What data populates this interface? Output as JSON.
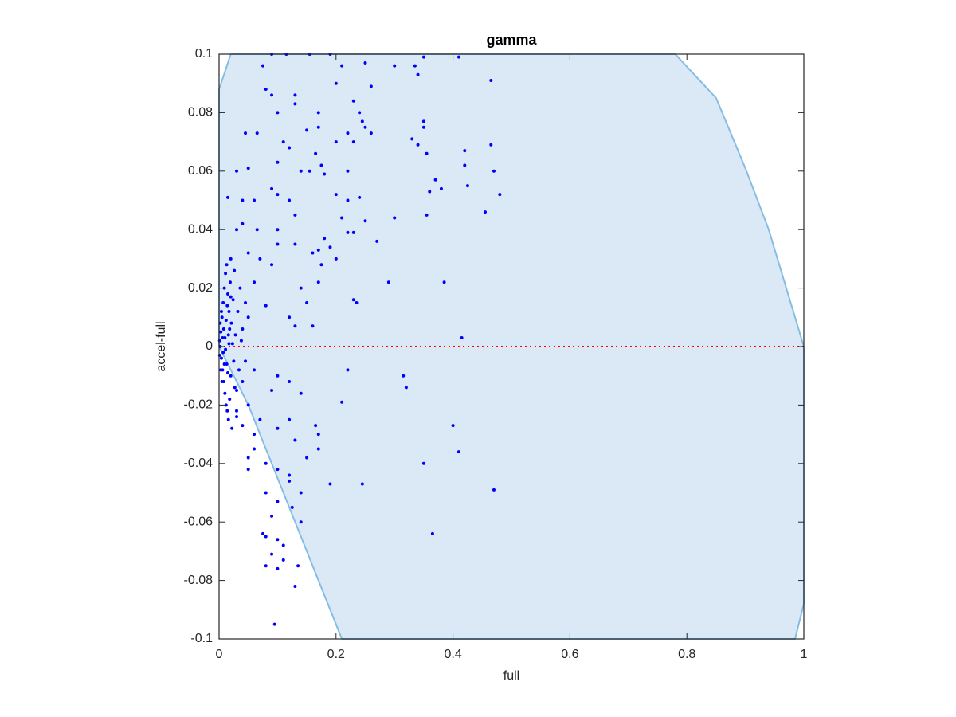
{
  "chart_data": {
    "type": "scatter",
    "title": "gamma",
    "x_label": "full",
    "y_label": "accel-full",
    "xlim": [
      0,
      1
    ],
    "ylim": [
      -0.1,
      0.1
    ],
    "xticks": [
      0,
      0.2,
      0.4,
      0.6,
      0.8,
      1
    ],
    "yticks": [
      -0.1,
      -0.08,
      -0.06,
      -0.04,
      -0.02,
      0,
      0.02,
      0.04,
      0.06,
      0.08,
      0.1
    ],
    "grid": false,
    "box": true,
    "region": {
      "fill": "#dae9f5",
      "edge": "#86bde4",
      "x": [
        0,
        0.02,
        0.78,
        0.85,
        0.9,
        0.94,
        0.97,
        1,
        1,
        0.985,
        0.21,
        0.17,
        0.13,
        0.09,
        0.05,
        0.02,
        0
      ],
      "y": [
        0.088,
        0.1,
        0.1,
        0.085,
        0.061,
        0.04,
        0.02,
        0,
        -0.088,
        -0.1,
        -0.1,
        -0.08,
        -0.06,
        -0.04,
        -0.02,
        -0.008,
        0
      ]
    },
    "reference_line": {
      "y": 0,
      "color": "#ff0000"
    },
    "series": [
      {
        "color": "#0000ff",
        "x": [
          0.09,
          0.115,
          0.075,
          0.155,
          0.19,
          0.21,
          0.25,
          0.3,
          0.335,
          0.35,
          0.41,
          0.34,
          0.465,
          0.26,
          0.08,
          0.09,
          0.13,
          0.13,
          0.2,
          0.23,
          0.1,
          0.065,
          0.045,
          0.17,
          0.15,
          0.17,
          0.24,
          0.245,
          0.25,
          0.22,
          0.26,
          0.35,
          0.35,
          0.33,
          0.34,
          0.11,
          0.12,
          0.165,
          0.2,
          0.23,
          0.355,
          0.42,
          0.465,
          0.42,
          0.03,
          0.05,
          0.1,
          0.14,
          0.155,
          0.175,
          0.18,
          0.22,
          0.36,
          0.37,
          0.38,
          0.425,
          0.47,
          0.48,
          0.455,
          0.015,
          0.04,
          0.06,
          0.09,
          0.1,
          0.12,
          0.2,
          0.22,
          0.24,
          0.355,
          0.3,
          0.25,
          0.21,
          0.13,
          0.1,
          0.065,
          0.03,
          0.04,
          0.18,
          0.22,
          0.23,
          0.27,
          0.1,
          0.13,
          0.16,
          0.17,
          0.19,
          0.2,
          0.05,
          0.07,
          0.02,
          0.09,
          0.175,
          0.29,
          0.385,
          0.17,
          0.14,
          0.06,
          0.23,
          0.235,
          0.15,
          0.08,
          0.415,
          0.12,
          0.13,
          0.16,
          0.04,
          0.05,
          0.06,
          0.1,
          0.22,
          0.315,
          0.32,
          0.12,
          0.09,
          0.21,
          0.14,
          0.05,
          0.07,
          0.12,
          0.04,
          0.165,
          0.17,
          0.4,
          0.06,
          0.1,
          0.13,
          0.06,
          0.17,
          0.41,
          0.05,
          0.08,
          0.15,
          0.35,
          0.1,
          0.12,
          0.19,
          0.245,
          0.47,
          0.12,
          0.14,
          0.08,
          0.1,
          0.125,
          0.09,
          0.14,
          0.365,
          0.075,
          0.08,
          0.1,
          0.11,
          0.09,
          0.11,
          0.08,
          0.135,
          0.1,
          0.13,
          0.095,
          0.05,
          0.03,
          0.03,
          0.002,
          0.003,
          0.004,
          0.005,
          0.006,
          0.007,
          0.008,
          0.009,
          0.01,
          0.011,
          0.012,
          0.013,
          0.014,
          0.015,
          0.016,
          0.017,
          0.018,
          0.019,
          0.02,
          0.021,
          0.022,
          0.024,
          0.025,
          0.026,
          0.027,
          0.028,
          0.03,
          0.032,
          0.034,
          0.036,
          0.002,
          0.003,
          0.004,
          0.005,
          0.006,
          0.007,
          0.008,
          0.009,
          0.01,
          0.012,
          0.014,
          0.016,
          0.018,
          0.02,
          0.023,
          0.038,
          0.04,
          0.045,
          0.045,
          0.001,
          0.001,
          0.011,
          0.013,
          0.015,
          0.017
        ],
        "values": [
          0.1,
          0.1,
          0.096,
          0.1,
          0.1,
          0.096,
          0.097,
          0.096,
          0.096,
          0.099,
          0.099,
          0.093,
          0.091,
          0.089,
          0.088,
          0.086,
          0.086,
          0.083,
          0.09,
          0.084,
          0.08,
          0.073,
          0.073,
          0.08,
          0.074,
          0.075,
          0.08,
          0.077,
          0.075,
          0.073,
          0.073,
          0.077,
          0.075,
          0.071,
          0.069,
          0.07,
          0.068,
          0.066,
          0.07,
          0.07,
          0.066,
          0.067,
          0.069,
          0.062,
          0.06,
          0.061,
          0.063,
          0.06,
          0.06,
          0.062,
          0.059,
          0.06,
          0.053,
          0.057,
          0.054,
          0.055,
          0.06,
          0.052,
          0.046,
          0.051,
          0.05,
          0.05,
          0.054,
          0.052,
          0.05,
          0.052,
          0.05,
          0.051,
          0.045,
          0.044,
          0.043,
          0.044,
          0.045,
          0.04,
          0.04,
          0.04,
          0.042,
          0.037,
          0.039,
          0.039,
          0.036,
          0.035,
          0.035,
          0.032,
          0.033,
          0.034,
          0.03,
          0.032,
          0.03,
          0.03,
          0.028,
          0.028,
          0.022,
          0.022,
          0.022,
          0.02,
          0.022,
          0.016,
          0.015,
          0.015,
          0.014,
          0.003,
          0.01,
          0.007,
          0.007,
          0.006,
          0.01,
          -0.008,
          -0.01,
          -0.008,
          -0.01,
          -0.014,
          -0.012,
          -0.015,
          -0.019,
          -0.016,
          -0.02,
          -0.025,
          -0.025,
          -0.027,
          -0.027,
          -0.03,
          -0.027,
          -0.03,
          -0.028,
          -0.032,
          -0.035,
          -0.035,
          -0.036,
          -0.038,
          -0.04,
          -0.038,
          -0.04,
          -0.042,
          -0.044,
          -0.047,
          -0.047,
          -0.049,
          -0.046,
          -0.05,
          -0.05,
          -0.053,
          -0.055,
          -0.058,
          -0.06,
          -0.064,
          -0.064,
          -0.065,
          -0.066,
          -0.068,
          -0.071,
          -0.073,
          -0.075,
          -0.075,
          -0.076,
          -0.082,
          -0.095,
          -0.042,
          -0.024,
          -0.015,
          0,
          0.005,
          -0.004,
          0.01,
          -0.008,
          0.015,
          -0.012,
          0.02,
          -0.016,
          0.025,
          -0.02,
          0.028,
          -0.022,
          0.018,
          -0.025,
          0.012,
          -0.018,
          0.022,
          -0.01,
          0.008,
          -0.028,
          0.016,
          -0.005,
          0.026,
          -0.014,
          0.004,
          -0.022,
          0.012,
          -0.008,
          0.02,
          0.008,
          -0.008,
          0.012,
          -0.012,
          0.003,
          -0.002,
          0.006,
          -0.006,
          0.003,
          0.009,
          0.014,
          0.004,
          0.006,
          0.017,
          0.001,
          0.002,
          -0.012,
          0.015,
          -0.005,
          0.002,
          -0.003,
          -0.001,
          -0.006,
          -0.009,
          0.001
        ]
      }
    ]
  }
}
